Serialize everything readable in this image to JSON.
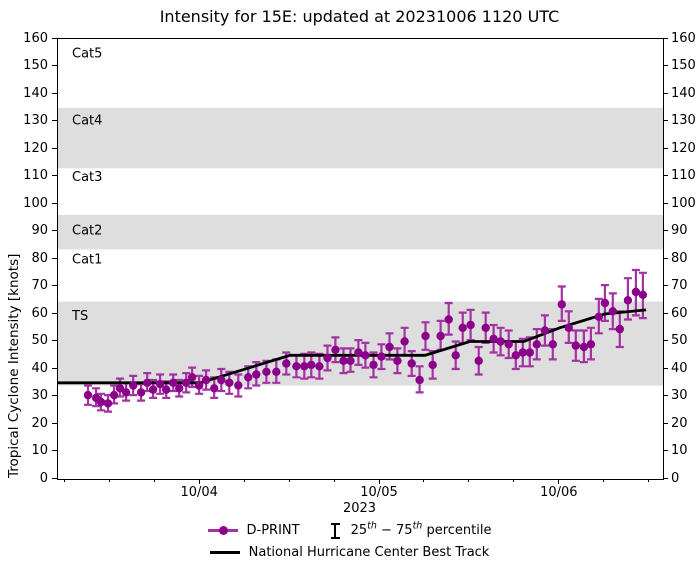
{
  "title": "Intensity for 15E: updated at 20231006 1120 UTC",
  "chart_data": {
    "type": "scatter",
    "title": "Intensity for 15E: updated at 20231006 1120 UTC",
    "xlabel": "2023",
    "ylabel": "Tropical Cyclone Intensity [knots]",
    "ylim": [
      0,
      160
    ],
    "y_ticks": [
      0,
      10,
      20,
      30,
      40,
      50,
      60,
      70,
      80,
      90,
      100,
      110,
      120,
      130,
      140,
      150,
      160
    ],
    "x_unit": "days since 2023-10-03 00:00 UTC",
    "xlim_days": [
      0.209,
      3.574
    ],
    "x_major_ticks": [
      {
        "t": 1.0,
        "label": "10/04"
      },
      {
        "t": 2.0,
        "label": "10/05"
      },
      {
        "t": 3.0,
        "label": "10/06"
      }
    ],
    "x_minor_ticks": [
      0.25,
      0.5,
      0.75,
      1.25,
      1.5,
      1.75,
      2.25,
      2.5,
      2.75,
      3.25,
      3.5
    ],
    "grid": false,
    "colors": {
      "marker": "#8B008B",
      "errorbar": "#A332A3",
      "best_track": "#000000",
      "band_shade": "#DEDEDE"
    },
    "bands": [
      {
        "name": "Cat5",
        "from_kt": 135,
        "to_kt": 160,
        "shaded": false,
        "label_kt": 155
      },
      {
        "name": "Cat4",
        "from_kt": 113,
        "to_kt": 135,
        "shaded": true,
        "label_kt": 130.5
      },
      {
        "name": "Cat3",
        "from_kt": 96,
        "to_kt": 113,
        "shaded": false,
        "label_kt": 110
      },
      {
        "name": "Cat2",
        "from_kt": 83.5,
        "to_kt": 96,
        "shaded": true,
        "label_kt": 90.5
      },
      {
        "name": "Cat1",
        "from_kt": 64.5,
        "to_kt": 83.5,
        "shaded": false,
        "label_kt": 80
      },
      {
        "name": "TS",
        "from_kt": 34,
        "to_kt": 64.5,
        "shaded": true,
        "label_kt": 59.5
      }
    ],
    "series": [
      {
        "name": "D-PRINT",
        "type": "scatter_errorbar",
        "points_format": [
          "t_days",
          "intensity_kt",
          "p25_kt",
          "p75_kt"
        ],
        "points": [
          [
            0.376,
            30.5,
            27,
            34
          ],
          [
            0.421,
            29.5,
            26.5,
            33
          ],
          [
            0.448,
            28,
            25,
            31
          ],
          [
            0.487,
            27.5,
            24.5,
            30.5
          ],
          [
            0.521,
            30.5,
            27.5,
            34
          ],
          [
            0.554,
            33,
            30,
            36.5
          ],
          [
            0.588,
            31.5,
            28.5,
            35
          ],
          [
            0.627,
            34,
            30.5,
            37.5
          ],
          [
            0.671,
            31.5,
            28.5,
            34.5
          ],
          [
            0.705,
            35,
            32,
            38.5
          ],
          [
            0.738,
            32.5,
            29.5,
            36
          ],
          [
            0.777,
            34.5,
            31,
            38
          ],
          [
            0.811,
            32.5,
            29.5,
            35.5
          ],
          [
            0.85,
            35,
            32,
            38
          ],
          [
            0.883,
            33,
            30,
            36
          ],
          [
            0.922,
            35,
            31.5,
            38.5
          ],
          [
            0.955,
            37,
            33.5,
            40.5
          ],
          [
            0.994,
            34,
            31,
            37.5
          ],
          [
            1.033,
            36,
            32.5,
            39.5
          ],
          [
            1.078,
            33,
            29.5,
            37
          ],
          [
            1.117,
            36,
            32,
            40
          ],
          [
            1.162,
            35,
            31,
            39
          ],
          [
            1.212,
            34,
            30,
            38
          ],
          [
            1.267,
            37,
            33,
            41
          ],
          [
            1.312,
            38,
            34,
            42.5
          ],
          [
            1.368,
            39,
            35,
            43
          ],
          [
            1.423,
            39,
            35,
            43.5
          ],
          [
            1.479,
            42,
            38,
            46
          ],
          [
            1.535,
            41,
            37,
            45
          ],
          [
            1.579,
            41,
            36.5,
            45.5
          ],
          [
            1.618,
            41.5,
            37,
            46
          ],
          [
            1.663,
            41,
            36.5,
            45.5
          ],
          [
            1.708,
            44,
            39.5,
            48.5
          ],
          [
            1.752,
            47,
            42.5,
            51.5
          ],
          [
            1.797,
            43,
            38.5,
            47.5
          ],
          [
            1.836,
            43,
            39,
            47.5
          ],
          [
            1.88,
            46,
            41.5,
            50.5
          ],
          [
            1.919,
            45,
            40.5,
            49.5
          ],
          [
            1.964,
            41.5,
            37,
            46
          ],
          [
            2.008,
            44.5,
            40,
            49
          ],
          [
            2.053,
            48,
            43.5,
            53
          ],
          [
            2.097,
            43,
            38.5,
            47.5
          ],
          [
            2.137,
            50,
            45,
            55
          ],
          [
            2.176,
            42,
            37.5,
            46.5
          ],
          [
            2.22,
            36,
            31.5,
            41
          ],
          [
            2.253,
            52,
            47,
            57
          ],
          [
            2.293,
            41.5,
            36.5,
            46.5
          ],
          [
            2.337,
            52,
            47,
            57.5
          ],
          [
            2.382,
            58,
            52.5,
            64
          ],
          [
            2.421,
            45,
            40,
            50
          ],
          [
            2.46,
            55,
            49.5,
            60.5
          ],
          [
            2.504,
            56,
            50.5,
            61.5
          ],
          [
            2.549,
            43,
            38,
            48
          ],
          [
            2.588,
            55,
            49.5,
            60.5
          ],
          [
            2.632,
            51,
            46,
            56
          ],
          [
            2.671,
            50,
            45,
            55
          ],
          [
            2.716,
            49,
            44,
            54
          ],
          [
            2.755,
            45,
            40,
            50
          ],
          [
            2.794,
            46,
            41,
            51
          ],
          [
            2.833,
            46,
            41,
            51.5
          ],
          [
            2.872,
            49,
            43.5,
            54.5
          ],
          [
            2.917,
            54,
            48.5,
            59.5
          ],
          [
            2.961,
            49,
            43.5,
            54.5
          ],
          [
            3.011,
            63.5,
            57.5,
            70
          ],
          [
            3.05,
            55,
            49.5,
            61
          ],
          [
            3.089,
            48.5,
            43,
            54
          ],
          [
            3.134,
            48,
            42.5,
            54
          ],
          [
            3.173,
            49,
            43.5,
            55
          ],
          [
            3.217,
            59,
            53,
            65.5
          ],
          [
            3.251,
            64,
            57.5,
            70.5
          ],
          [
            3.295,
            61,
            54.5,
            67.5
          ],
          [
            3.334,
            54.5,
            48,
            61
          ],
          [
            3.379,
            65,
            58,
            73
          ],
          [
            3.423,
            68,
            59.5,
            76
          ],
          [
            3.462,
            67,
            58.5,
            75
          ]
        ]
      },
      {
        "name": "National Hurricane Center Best Track",
        "type": "line",
        "points_format": [
          "t_days",
          "intensity_kt"
        ],
        "points": [
          [
            0.209,
            35
          ],
          [
            1.0,
            35
          ],
          [
            1.5,
            45
          ],
          [
            2.25,
            45
          ],
          [
            2.5,
            50
          ],
          [
            2.8,
            50
          ],
          [
            3.0,
            55
          ],
          [
            3.25,
            60
          ],
          [
            3.48,
            61.5
          ]
        ]
      }
    ],
    "legend": {
      "position": "below",
      "dprint_label": "D-PRINT",
      "percentile_prefix": "25",
      "percentile_sup1": "th",
      "percentile_mid": " − 75",
      "percentile_sup2": "th",
      "percentile_suffix": " percentile",
      "besttrack_label": "National Hurricane Center Best Track"
    }
  }
}
